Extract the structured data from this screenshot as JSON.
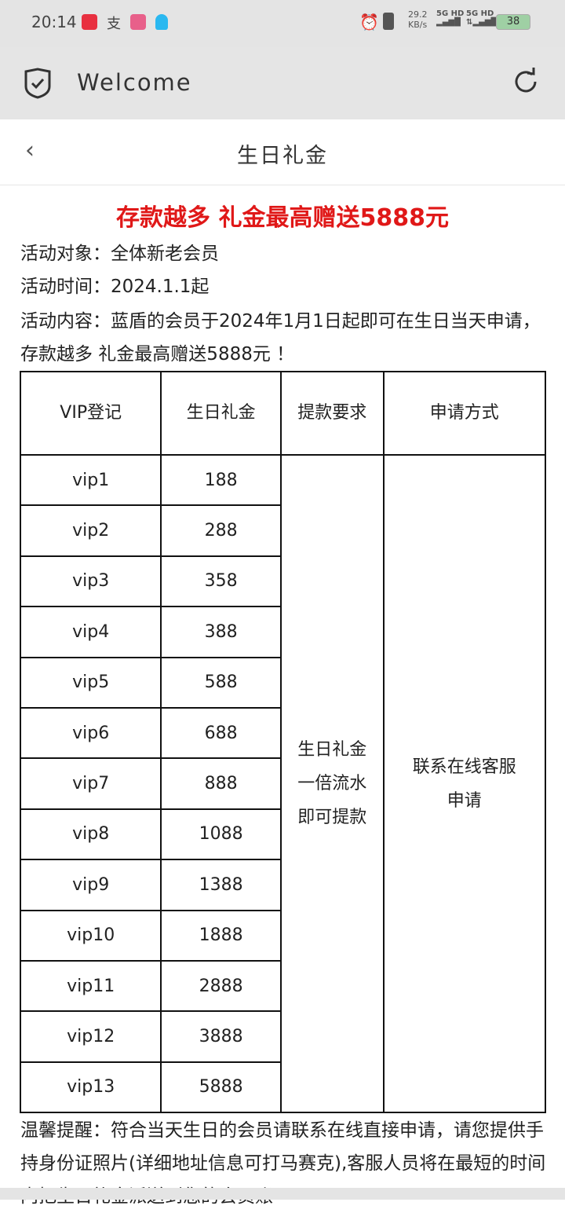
{
  "status_bar": {
    "time": "20:14",
    "net_speed": "29.2",
    "net_unit": "KB/s",
    "sim1": "5G HD",
    "sim2": "5G HD",
    "battery": "38"
  },
  "app_bar": {
    "title": "Welcome"
  },
  "nav": {
    "title": "生日礼金"
  },
  "headline": "存款越多 礼金最高赠送5888元",
  "info": [
    "活动对象：全体新老会员",
    "活动时间：2024.1.1起",
    "活动内容：蓝盾的会员于2024年1月1日起即可在生日当天申请，存款越多 礼金最高赠送5888元 ！"
  ],
  "table": {
    "headers": [
      "VIP登记",
      "生日礼金",
      "提款要求",
      "申请方式"
    ],
    "rows": [
      [
        "vip1",
        "188"
      ],
      [
        "vip2",
        "288"
      ],
      [
        "vip3",
        "358"
      ],
      [
        "vip4",
        "388"
      ],
      [
        "vip5",
        "588"
      ],
      [
        "vip6",
        "688"
      ],
      [
        "vip7",
        "888"
      ],
      [
        "vip8",
        "1088"
      ],
      [
        "vip9",
        "1388"
      ],
      [
        "vip10",
        "1888"
      ],
      [
        "vip11",
        "2888"
      ],
      [
        "vip12",
        "3888"
      ],
      [
        "vip13",
        "5888"
      ]
    ],
    "requirement": [
      "生日礼金",
      "一倍流水",
      "即可提款"
    ],
    "method": "联系在线客服申请"
  },
  "footer": "温馨提醒：符合当天生日的会员请联系在线直接申请，请您提供手持身份证照片(详细地址信息可打马赛克),客服人员将在最短的时间内把生日礼金派送到您的会员账"
}
